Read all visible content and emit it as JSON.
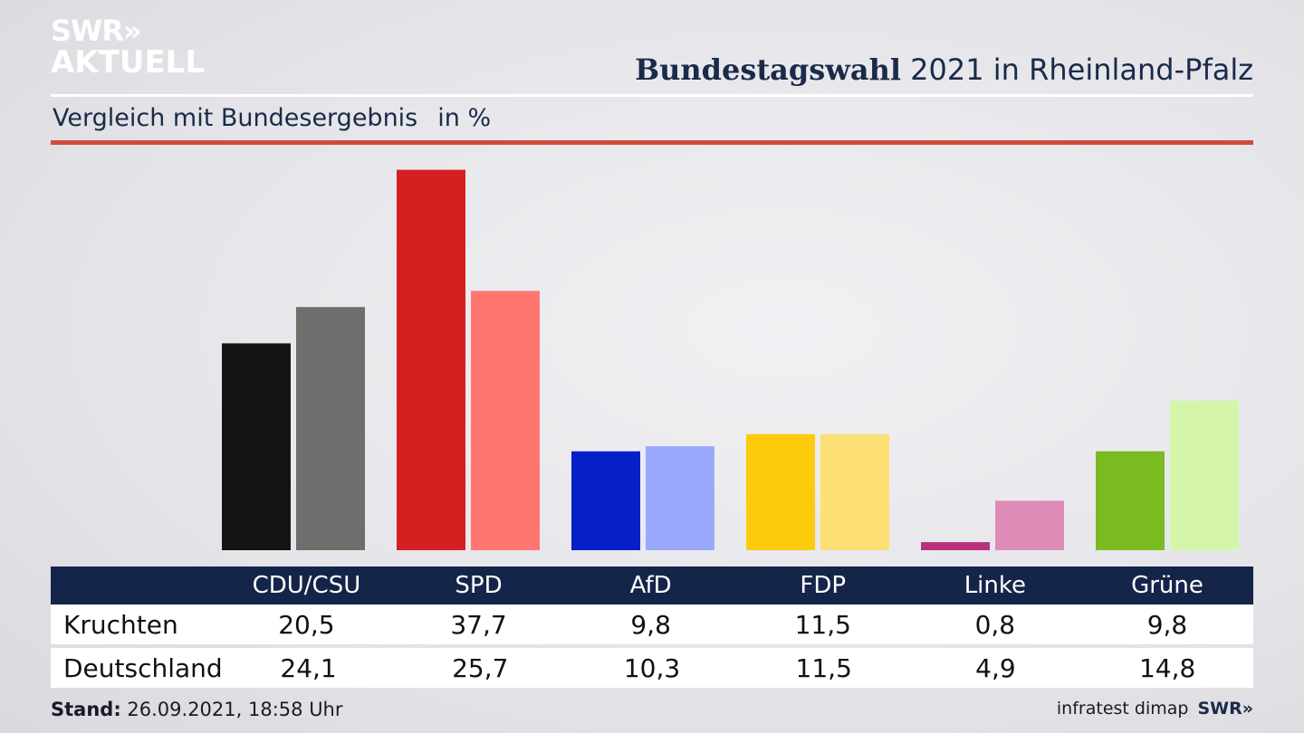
{
  "logo": {
    "line1": "SWR»",
    "line2": "AKTUELL"
  },
  "header": {
    "title_bold": "Bundestagswahl",
    "title_rest": "2021 in Rheinland-Pfalz"
  },
  "subtitle": {
    "text": "Vergleich mit Bundesergebnis",
    "unit": "in %"
  },
  "chart_data": {
    "type": "bar",
    "categories": [
      "CDU/CSU",
      "SPD",
      "AfD",
      "FDP",
      "Linke",
      "Grüne"
    ],
    "series": [
      {
        "name": "Kruchten",
        "values": [
          20.5,
          37.7,
          9.8,
          11.5,
          0.8,
          9.8
        ],
        "colors": [
          "#141414",
          "#d42020",
          "#0620c8",
          "#fccb0c",
          "#b9307a",
          "#79bb20"
        ]
      },
      {
        "name": "Deutschland",
        "values": [
          24.1,
          25.7,
          10.3,
          11.5,
          4.9,
          14.8
        ],
        "colors": [
          "#6f6e6d",
          "#ff7570",
          "#9aa9fc",
          "#fde074",
          "#df8bb8",
          "#d5f6aa"
        ]
      }
    ],
    "value_labels": [
      [
        "20,5",
        "37,7",
        "9,8",
        "11,5",
        "0,8",
        "9,8"
      ],
      [
        "24,1",
        "25,7",
        "10,3",
        "11,5",
        "4,9",
        "14,8"
      ]
    ],
    "ylim": [
      0,
      40
    ],
    "grid": false
  },
  "table": {
    "rows": [
      "Kruchten",
      "Deutschland"
    ]
  },
  "footer": {
    "stand_label": "Stand:",
    "stand_value": "26.09.2021, 18:58 Uhr",
    "source": "infratest dimap",
    "brand": "SWR»"
  }
}
